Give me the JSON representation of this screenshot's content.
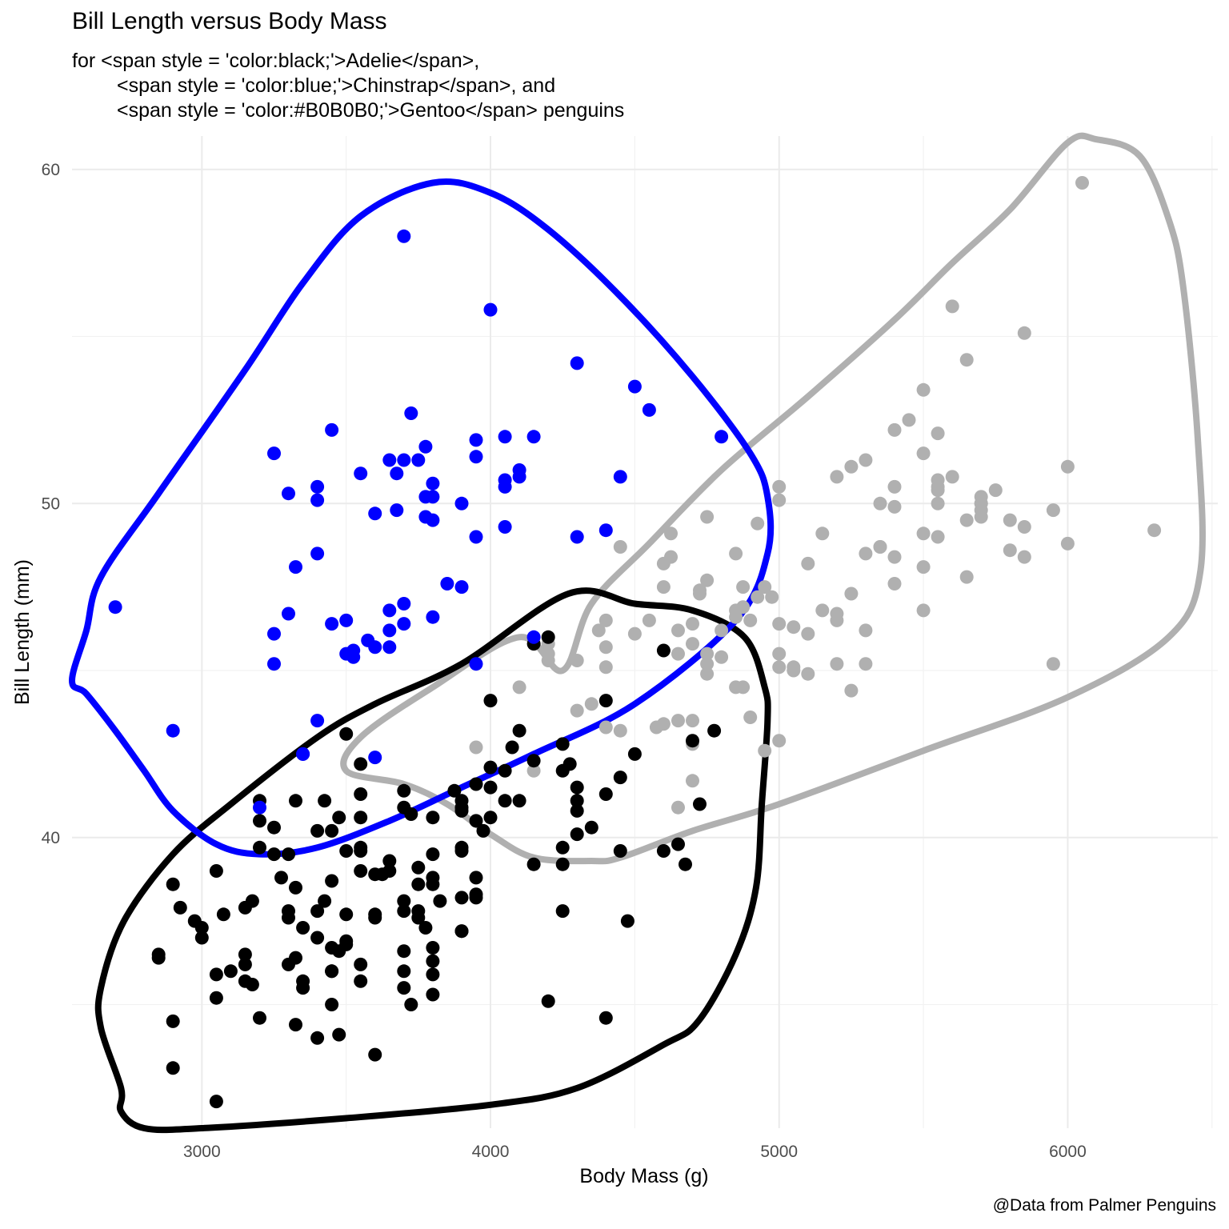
{
  "chart_data": {
    "type": "scatter",
    "title": "Bill Length versus Body Mass",
    "subtitle_lines": [
      "for <span style = 'color:black;'>Adelie</span>,",
      "<span style = 'color:blue;'>Chinstrap</span>, and",
      "<span style = 'color:#B0B0B0;'>Gentoo</span> penguins"
    ],
    "caption": "@Data from Palmer Penguins",
    "xlabel": "Body Mass (g)",
    "ylabel": "Bill Length (mm)",
    "xlim": [
      2550,
      6520
    ],
    "ylim": [
      31.3,
      61
    ],
    "x_ticks": [
      3000,
      4000,
      5000,
      6000
    ],
    "x_tick_labels": [
      "3000",
      "4000",
      "5000",
      "6000"
    ],
    "y_ticks": [
      40,
      50,
      60
    ],
    "y_tick_labels": [
      "40",
      "50",
      "60"
    ],
    "grid": true,
    "legend": "none",
    "series": [
      {
        "color": "#000000",
        "hull": [
          [
            4270,
            47.3
          ],
          [
            4500,
            47
          ],
          [
            4700,
            46.8
          ],
          [
            4880,
            46
          ],
          [
            4950,
            44.5
          ],
          [
            4960,
            43.5
          ],
          [
            4940,
            41
          ],
          [
            4920,
            38.5
          ],
          [
            4850,
            36.5
          ],
          [
            4720,
            34.5
          ],
          [
            4600,
            33.8
          ],
          [
            4300,
            32.5
          ],
          [
            4000,
            32.0
          ],
          [
            3500,
            31.6
          ],
          [
            3000,
            31.3
          ],
          [
            2800,
            31.3
          ],
          [
            2720,
            31.8
          ],
          [
            2720,
            32.5
          ],
          [
            2650,
            34.3
          ],
          [
            2650,
            35.5
          ],
          [
            2730,
            37.5
          ],
          [
            2900,
            39.5
          ],
          [
            3100,
            41.0
          ],
          [
            3400,
            43.0
          ],
          [
            3600,
            44.0
          ],
          [
            3900,
            45.2
          ],
          [
            4270,
            47.3
          ]
        ],
        "x": [
          3750,
          3800,
          3250,
          3450,
          3650,
          3625,
          4675,
          3475,
          4250,
          3300,
          3700,
          3200,
          3800,
          4400,
          3700,
          3450,
          4500,
          3325,
          4200,
          3400,
          3600,
          3800,
          3950,
          3800,
          3800,
          3550,
          3200,
          3150,
          3950,
          3250,
          3900,
          3300,
          3900,
          3325,
          4150,
          3950,
          3550,
          3300,
          4650,
          3150,
          3900,
          3100,
          4400,
          3000,
          4600,
          3425,
          2975,
          3450,
          4150,
          3500,
          4300,
          3450,
          4050,
          2900,
          3700,
          3550,
          3800,
          2850,
          3750,
          3150,
          4400,
          3600,
          4050,
          2850,
          3950,
          3350,
          4100,
          3050,
          4450,
          3600,
          3900,
          3550,
          4150,
          3700,
          4250,
          3700,
          3900,
          3550,
          4000,
          3200,
          4700,
          3800,
          4200,
          3350,
          3550,
          3800,
          3500,
          3950,
          3600,
          3550,
          4300,
          3400,
          4450,
          3300,
          4300,
          3700,
          4350,
          2900,
          4100,
          3725,
          4725,
          3075,
          4250,
          2925,
          3550,
          3750,
          3900,
          3175,
          4775,
          3825,
          4600,
          3200,
          4275,
          3900,
          4075,
          2900,
          3775,
          3350,
          3325,
          3150,
          3500,
          3450,
          3875,
          3050,
          4000,
          3275,
          4300,
          3050,
          4000,
          3325,
          3500,
          3500,
          4475,
          3425,
          3900,
          3175,
          3975,
          3400,
          4250,
          3400,
          3475,
          3050,
          3725,
          3000,
          3650,
          4250,
          3475,
          3450,
          3750,
          3700,
          4000
        ],
        "y": [
          39.1,
          39.5,
          40.3,
          36.7,
          39.3,
          38.9,
          39.2,
          34.1,
          42.0,
          37.8,
          37.8,
          41.1,
          38.6,
          34.6,
          36.6,
          38.7,
          42.5,
          34.4,
          46.0,
          37.8,
          37.7,
          35.9,
          38.2,
          38.8,
          35.3,
          40.6,
          40.5,
          37.9,
          40.5,
          39.5,
          37.2,
          39.5,
          40.9,
          36.4,
          39.2,
          38.8,
          42.2,
          37.6,
          39.8,
          36.5,
          40.8,
          36.0,
          44.1,
          37.0,
          39.6,
          41.1,
          37.5,
          36.0,
          42.3,
          39.6,
          40.1,
          35.0,
          42.0,
          34.5,
          41.4,
          39.0,
          40.6,
          36.5,
          37.6,
          35.7,
          41.3,
          37.6,
          41.1,
          36.4,
          41.6,
          35.5,
          41.1,
          35.9,
          41.8,
          33.5,
          39.7,
          39.6,
          45.8,
          35.5,
          42.8,
          40.9,
          37.2,
          36.2,
          42.1,
          34.6,
          42.9,
          36.7,
          35.1,
          37.3,
          41.3,
          36.3,
          36.9,
          38.3,
          38.9,
          35.7,
          41.1,
          34.0,
          39.6,
          36.2,
          40.8,
          38.1,
          40.3,
          33.1,
          43.2,
          35.0,
          41.0,
          37.7,
          37.8,
          37.9,
          39.7,
          38.6,
          38.2,
          38.1,
          43.2,
          38.1,
          45.6,
          39.7,
          42.2,
          39.6,
          42.7,
          38.6,
          37.3,
          35.7,
          41.1,
          36.2,
          37.7,
          40.2,
          41.4,
          35.2,
          40.6,
          38.8,
          41.5,
          39.0,
          44.1,
          38.5,
          43.1,
          36.8,
          37.5,
          38.1,
          41.1,
          35.6,
          40.2,
          37.0,
          39.7,
          40.2,
          40.6,
          32.1,
          40.7,
          37.3,
          39.0,
          39.2,
          36.6,
          36.0,
          37.8,
          36.0,
          41.5
        ]
      },
      {
        "color": "#0000FF",
        "hull": [
          [
            2600,
            46.2
          ],
          [
            2650,
            47.8
          ],
          [
            2850,
            50.3
          ],
          [
            3150,
            54.0
          ],
          [
            3350,
            56.6
          ],
          [
            3550,
            58.6
          ],
          [
            3800,
            59.6
          ],
          [
            4000,
            59.3
          ],
          [
            4200,
            58.2
          ],
          [
            4450,
            56.2
          ],
          [
            4700,
            53.8
          ],
          [
            4900,
            51.5
          ],
          [
            4960,
            50.2
          ],
          [
            4960,
            48.5
          ],
          [
            4850,
            46.5
          ],
          [
            4500,
            44.0
          ],
          [
            4150,
            42.5
          ],
          [
            3900,
            41.5
          ],
          [
            3650,
            40.5
          ],
          [
            3400,
            39.7
          ],
          [
            3200,
            39.5
          ],
          [
            3050,
            39.8
          ],
          [
            2900,
            40.8
          ],
          [
            2800,
            42.0
          ],
          [
            2700,
            43.2
          ],
          [
            2600,
            44.3
          ],
          [
            2550,
            44.7
          ]
        ],
        "x": [
          3500,
          3900,
          3650,
          3525,
          3725,
          3950,
          3250,
          3750,
          4150,
          3700,
          3800,
          3775,
          3700,
          4050,
          3575,
          4050,
          3300,
          3700,
          3450,
          4400,
          3600,
          3400,
          2900,
          3800,
          3300,
          4150,
          3400,
          3800,
          3700,
          4550,
          3200,
          4300,
          3350,
          4100,
          3600,
          3900,
          3850,
          4800,
          2700,
          4500,
          3950,
          3650,
          3550,
          3500,
          3675,
          4450,
          3400,
          4300,
          3250,
          3675,
          3325,
          3950,
          3600,
          4050,
          3350,
          3450,
          3250,
          4050,
          3800,
          3525,
          3950,
          3650,
          3650,
          4000,
          3400,
          3775,
          4100,
          3775
        ],
        "y": [
          46.5,
          50.0,
          51.3,
          45.4,
          52.7,
          45.2,
          46.1,
          51.3,
          46.0,
          51.3,
          46.6,
          51.7,
          47.0,
          52.0,
          45.9,
          50.5,
          50.3,
          58.0,
          46.4,
          49.2,
          42.4,
          48.5,
          43.2,
          50.6,
          46.7,
          52.0,
          50.5,
          49.5,
          46.4,
          52.8,
          40.9,
          54.2,
          42.5,
          51.0,
          49.7,
          47.5,
          47.6,
          52.0,
          46.9,
          53.5,
          49.0,
          46.2,
          50.9,
          45.5,
          50.9,
          50.8,
          50.1,
          49.0,
          51.5,
          49.8,
          48.1,
          51.4,
          45.7,
          50.7,
          42.5,
          52.2,
          45.2,
          49.3,
          50.2,
          45.6,
          51.9,
          46.8,
          45.7,
          55.8,
          43.5,
          49.6,
          50.8,
          50.2
        ]
      },
      {
        "color": "#B0B0B0",
        "hull": [
          [
            4250,
            45.0
          ],
          [
            4350,
            47.0
          ],
          [
            4550,
            48.8
          ],
          [
            4800,
            51.0
          ],
          [
            5100,
            53.2
          ],
          [
            5400,
            55.5
          ],
          [
            5600,
            57.2
          ],
          [
            5800,
            58.8
          ],
          [
            6000,
            60.8
          ],
          [
            6100,
            60.9
          ],
          [
            6250,
            60.4
          ],
          [
            6350,
            58.5
          ],
          [
            6400,
            56.5
          ],
          [
            6450,
            52.0
          ],
          [
            6460,
            48.0
          ],
          [
            6350,
            46.0
          ],
          [
            6000,
            44.2
          ],
          [
            5500,
            42.6
          ],
          [
            5000,
            41.0
          ],
          [
            4700,
            40.2
          ],
          [
            4450,
            39.4
          ],
          [
            4350,
            39.3
          ],
          [
            4150,
            39.4
          ],
          [
            4000,
            40.1
          ],
          [
            3850,
            41.0
          ],
          [
            3700,
            41.6
          ],
          [
            3500,
            42.0
          ],
          [
            3550,
            43.0
          ],
          [
            3800,
            44.5
          ],
          [
            4100,
            46.0
          ],
          [
            4250,
            45.0
          ]
        ],
        "x": [
          4500,
          5700,
          4450,
          5700,
          5400,
          4550,
          4800,
          5200,
          4400,
          5150,
          4650,
          5550,
          4650,
          5850,
          4200,
          5850,
          4150,
          6300,
          4800,
          5350,
          5700,
          5000,
          4400,
          5050,
          5000,
          5100,
          4100,
          5650,
          4600,
          5550,
          5250,
          4700,
          5050,
          6050,
          5150,
          5400,
          4950,
          5250,
          4350,
          5350,
          3950,
          5700,
          4300,
          4750,
          5550,
          4900,
          4200,
          5400,
          5100,
          5300,
          4850,
          5300,
          4400,
          5000,
          4900,
          5050,
          4300,
          5000,
          4450,
          5550,
          4200,
          5300,
          4400,
          5650,
          4700,
          5700,
          4650,
          5800,
          4700,
          5550,
          4750,
          5000,
          5100,
          5200,
          4700,
          5800,
          4600,
          6000,
          4750,
          5950,
          4625,
          5450,
          4725,
          5350,
          4750,
          5600,
          4600,
          5300,
          4875,
          5550,
          4950,
          5400,
          4750,
          5650,
          4850,
          5200,
          4925,
          4875,
          4625,
          5250,
          4850,
          5600,
          4975,
          5500,
          4725,
          5500,
          4700,
          5500,
          4575,
          5500,
          5000,
          5950,
          4650,
          5500,
          4375,
          5850,
          4875,
          6000,
          4925,
          4850,
          5750,
          5200,
          5400
        ],
        "y": [
          46.1,
          50.0,
          48.7,
          50.0,
          47.6,
          46.5,
          45.4,
          46.7,
          43.3,
          46.8,
          40.9,
          49.0,
          45.5,
          48.4,
          45.8,
          49.3,
          42.0,
          49.2,
          46.2,
          48.7,
          50.2,
          45.1,
          46.5,
          46.3,
          42.9,
          46.1,
          44.5,
          47.8,
          48.2,
          50.0,
          47.3,
          42.8,
          45.1,
          59.6,
          49.1,
          48.4,
          42.6,
          44.4,
          44.0,
          48.7,
          42.7,
          49.6,
          45.3,
          49.6,
          50.5,
          43.6,
          45.5,
          50.5,
          44.9,
          45.2,
          46.6,
          48.5,
          45.1,
          50.1,
          46.5,
          45.0,
          43.8,
          45.5,
          43.2,
          50.4,
          45.3,
          46.2,
          45.7,
          54.3,
          45.8,
          49.8,
          46.2,
          49.5,
          43.5,
          50.7,
          47.7,
          46.4,
          48.2,
          46.5,
          46.4,
          48.6,
          47.5,
          51.1,
          45.2,
          45.2,
          49.1,
          52.5,
          47.4,
          50.0,
          44.9,
          50.8,
          43.4,
          51.3,
          47.5,
          52.1,
          47.5,
          52.2,
          45.5,
          49.5,
          44.5,
          50.8,
          49.4,
          46.9,
          48.4,
          51.1,
          48.5,
          55.9,
          47.2,
          49.1,
          47.3,
          46.8,
          41.7,
          53.4,
          43.3,
          48.1,
          50.5,
          49.8,
          43.5,
          51.5,
          46.2,
          55.1,
          44.5,
          48.8,
          47.2,
          46.8,
          50.4,
          45.2,
          49.9
        ]
      }
    ]
  }
}
